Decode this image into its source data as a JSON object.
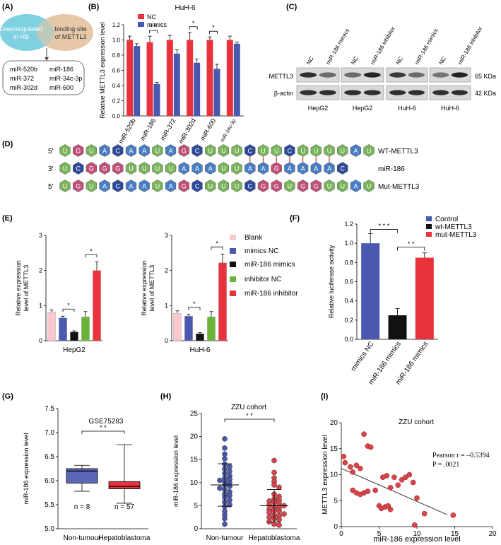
{
  "panel_labels": {
    "a": "(A)",
    "b": "(B)",
    "c": "(C)",
    "d": "(D)",
    "e": "(E)",
    "f": "(F)",
    "g": "(G)",
    "h": "(H)",
    "i": "(I)"
  },
  "sig": {
    "two": "* *",
    "one": "*",
    "three": "* * *"
  },
  "colors": {
    "red": "#e8333c",
    "blue": "#4a58b0",
    "pink": "#f8c8cc",
    "black": "#111111",
    "green": "#6ab43a",
    "cyan": "#7fd0e0",
    "tan": "#e6c8a8",
    "box": "#5a66b6",
    "scatter_red": "#d9454a",
    "scatter_blue": "#4b5aa8"
  },
  "panel_a": {
    "left_circle": "Downregulated in HB",
    "left_lines": [
      "Downregulated",
      "in HB"
    ],
    "right_lines": [
      "binding site",
      "of METTL3"
    ],
    "mirs": [
      "miR-520b",
      "miR-186",
      "miR-372",
      "miR-34c-3p",
      "miR-302d",
      "miR-600"
    ]
  },
  "chart_data": [
    {
      "id": "B",
      "type": "bar",
      "title": "HuH-6",
      "ylabel": "Relative METTL3 expression level",
      "categories": [
        "miR-520b",
        "miR-186",
        "miR-372",
        "miR-302d",
        "miR-600",
        "miR-34c-3p"
      ],
      "series": [
        {
          "name": "NC",
          "values": [
            1.0,
            0.97,
            1.0,
            1.0,
            1.0,
            1.0
          ],
          "errors": [
            0.05,
            0.08,
            0.06,
            0.1,
            0.04,
            0.05
          ]
        },
        {
          "name": "mimics",
          "values": [
            0.92,
            0.42,
            0.82,
            0.7,
            0.62,
            0.95
          ],
          "errors": [
            0.03,
            0.02,
            0.05,
            0.05,
            0.06,
            0.02
          ]
        }
      ],
      "ylim": [
        0,
        1.2
      ],
      "yticks": [
        0.0,
        0.2,
        0.4,
        0.6,
        0.8,
        1.0,
        1.2
      ],
      "ytick_labels": [
        "0.0",
        "0.2",
        "0.4",
        "0.6",
        "0.8",
        "1.0",
        "1.2"
      ],
      "significance": [
        {
          "category": "miR-186",
          "label": "* *"
        },
        {
          "category": "miR-302d",
          "label": "*"
        },
        {
          "category": "miR-600",
          "label": "*"
        }
      ]
    },
    {
      "id": "E-HepG2",
      "type": "bar",
      "title": "",
      "xlabel": "HepG2",
      "ylabel": "Relative expression level of METTL3",
      "categories": [
        "Blank",
        "mimics NC",
        "miR-186 mimics",
        "inhibitor NC",
        "miR-186 inhibitor"
      ],
      "values": [
        0.82,
        0.65,
        0.25,
        0.68,
        2.0
      ],
      "errors": [
        0.06,
        0.05,
        0.03,
        0.15,
        0.25
      ],
      "ylim": [
        0,
        3
      ],
      "yticks": [
        0,
        1,
        2,
        3
      ],
      "ytick_labels": [
        "0",
        "1",
        "2",
        "3"
      ],
      "significance": [
        {
          "from": 1,
          "to": 2,
          "label": "*"
        },
        {
          "from": 3,
          "to": 4,
          "label": "*"
        }
      ]
    },
    {
      "id": "E-HuH6",
      "type": "bar",
      "title": "",
      "xlabel": "HuH-6",
      "ylabel": "Relative expression level of METTL3",
      "categories": [
        "Blank",
        "mimics NC",
        "miR-186 mimics",
        "inhibitor NC",
        "miR-186 inhibitor"
      ],
      "values": [
        0.78,
        0.7,
        0.2,
        0.68,
        2.22
      ],
      "errors": [
        0.07,
        0.05,
        0.03,
        0.15,
        0.25
      ],
      "ylim": [
        0,
        3
      ],
      "yticks": [
        0,
        1,
        2,
        3
      ],
      "ytick_labels": [
        "0",
        "1",
        "2",
        "3"
      ],
      "significance": [
        {
          "from": 1,
          "to": 2,
          "label": "*"
        },
        {
          "from": 3,
          "to": 4,
          "label": "*"
        }
      ]
    },
    {
      "id": "F",
      "type": "bar",
      "ylabel": "Relative luciferase activity",
      "categories": [
        "mimics NC",
        "miR-186 mimics",
        "miR-186 mimics"
      ],
      "legend": [
        "Control",
        "wt-METTL3",
        "mut-METTL3"
      ],
      "values": [
        1.0,
        0.25,
        0.85
      ],
      "errors": [
        0.1,
        0.07,
        0.05
      ],
      "ylim": [
        0,
        1.2
      ],
      "yticks": [
        0.0,
        0.2,
        0.4,
        0.6,
        0.8,
        1.0,
        1.2
      ],
      "ytick_labels": [
        "0.0",
        "0.2",
        "0.4",
        "0.6",
        "0.8",
        "1.0",
        "1.2"
      ],
      "significance": [
        {
          "from": 0,
          "to": 1,
          "label": "* * *"
        },
        {
          "from": 1,
          "to": 2,
          "label": "* *"
        }
      ]
    },
    {
      "id": "G",
      "type": "box",
      "title": "GSE75283",
      "ylabel": "miR-186 expression level",
      "categories": [
        "Non-tumour",
        "Hepatoblastoma"
      ],
      "boxes": [
        {
          "min": 5.78,
          "q1": 5.95,
          "median": 6.2,
          "q3": 6.25,
          "max": 6.32
        },
        {
          "min": 5.53,
          "q1": 5.83,
          "median": 5.88,
          "q3": 5.98,
          "max": 6.75
        }
      ],
      "n_labels": [
        "n = 8",
        "n = 57"
      ],
      "ylim": [
        5.0,
        7.5
      ],
      "yticks": [
        5.0,
        5.5,
        6.0,
        6.5,
        7.0,
        7.5
      ],
      "ytick_labels": [
        "5.0",
        "5.5",
        "6.0",
        "6.5",
        "7.0",
        "7.5"
      ],
      "significance": "* *"
    },
    {
      "id": "H",
      "type": "scatter",
      "title": "ZZU cohort",
      "ylabel": "miR-186 expression level",
      "categories": [
        "Non-tumour",
        "Hepatoblastoma"
      ],
      "groups": [
        {
          "name": "Non-tumour",
          "mean": 9.5,
          "sd": 4.6,
          "values": [
            19.5,
            17.5,
            16.2,
            15.2,
            14.0,
            13.5,
            13.0,
            12.5,
            12.0,
            11.5,
            11.0,
            10.8,
            10.5,
            10.2,
            10.0,
            9.5,
            9.2,
            8.8,
            8.5,
            8.0,
            7.5,
            7.2,
            6.8,
            6.2,
            5.8,
            5.2,
            4.8,
            3.8,
            3.0,
            2.2,
            1.0
          ]
        },
        {
          "name": "Hepatoblastoma",
          "mean": 5.0,
          "sd": 3.5,
          "values": [
            14.8,
            12.2,
            11.0,
            10.2,
            9.5,
            9.0,
            7.5,
            7.0,
            6.5,
            6.2,
            6.0,
            5.8,
            5.5,
            5.2,
            5.0,
            4.8,
            4.5,
            4.2,
            4.0,
            3.8,
            3.5,
            3.2,
            3.0,
            2.8,
            2.5,
            2.2,
            2.0,
            1.5,
            1.0,
            0.8
          ]
        }
      ],
      "ylim": [
        0,
        25
      ],
      "yticks": [
        0,
        5,
        10,
        15,
        20,
        25
      ],
      "ytick_labels": [
        "0",
        "5",
        "10",
        "15",
        "20",
        "25"
      ],
      "significance": "* *"
    },
    {
      "id": "I",
      "type": "scatter",
      "title": "ZZU cohort",
      "xlabel": "miR-186 expression level",
      "ylabel": "METTL3 expression level",
      "points": [
        [
          0.3,
          13.5
        ],
        [
          0.5,
          12.3
        ],
        [
          1.2,
          11.5
        ],
        [
          1.5,
          10.5
        ],
        [
          2.0,
          11.8
        ],
        [
          2.5,
          11.2
        ],
        [
          3.0,
          17.8
        ],
        [
          3.5,
          15.5
        ],
        [
          3.9,
          15.3
        ],
        [
          1.5,
          7.0
        ],
        [
          2.0,
          6.5
        ],
        [
          2.5,
          6.2
        ],
        [
          3.0,
          6.5
        ],
        [
          3.5,
          6.8
        ],
        [
          4.5,
          7.0
        ],
        [
          5.5,
          9.5
        ],
        [
          6.0,
          9.8
        ],
        [
          6.5,
          7.5
        ],
        [
          7.0,
          9.5
        ],
        [
          7.5,
          8.0
        ],
        [
          8.0,
          9.0
        ],
        [
          8.5,
          9.5
        ],
        [
          9.0,
          10.0
        ],
        [
          9.5,
          8.5
        ],
        [
          10.0,
          5.5
        ],
        [
          11.0,
          2.5
        ],
        [
          5.0,
          4.0
        ],
        [
          5.3,
          3.5
        ],
        [
          5.8,
          3.8
        ],
        [
          6.2,
          4.0
        ],
        [
          6.5,
          3.3
        ],
        [
          9.7,
          0.3
        ],
        [
          14.8,
          2.2
        ]
      ],
      "fit": {
        "x": [
          0,
          14
        ],
        "y": [
          11.2,
          2.3
        ]
      },
      "stats": [
        "Pearson r = –0.5394",
        "P = .0021"
      ],
      "xlim": [
        0,
        20
      ],
      "ylim": [
        0,
        20
      ],
      "xticks": [
        0,
        5,
        10,
        15,
        20
      ],
      "xtick_labels": [
        "0",
        "5",
        "10",
        "15",
        "20"
      ],
      "yticks": [
        0,
        5,
        10,
        15,
        20
      ],
      "ytick_labels": [
        "0",
        "5",
        "10",
        "15",
        "20"
      ]
    }
  ],
  "panel_c": {
    "row_labels": [
      "METTL3",
      "β-actin"
    ],
    "size_labels": [
      "65 KDa",
      "42 KDa"
    ],
    "blots": [
      {
        "lanes": [
          "NC",
          "miR-186 mimics"
        ],
        "cell": "HepG2"
      },
      {
        "lanes": [
          "NC",
          "miR-186 inhibitor"
        ],
        "cell": "HepG2"
      },
      {
        "lanes": [
          "NC",
          "miR-186 mimics"
        ],
        "cell": "HuH-6"
      },
      {
        "lanes": [
          "NC",
          "miR-186 inhibitor"
        ],
        "cell": "HuH-6"
      }
    ]
  },
  "panel_d": {
    "rows": [
      {
        "prefix": "5'",
        "name": "WT-METTL3",
        "seq": "UGUACAAUAGCUUUCUUCUUUUAU"
      },
      {
        "prefix": "3'",
        "name": "miR-186",
        "seq": "UCGGGUUUUAAAUUAAGAAAAC"
      },
      {
        "prefix": "5'",
        "name": "Mut-METTL3",
        "seq": "UGUACAAUAGCUUUCGGUGGUUAU"
      }
    ],
    "pair_positions": [
      14,
      15,
      16,
      17,
      18,
      19,
      20
    ],
    "base_colors": {
      "U": "#7ab55c",
      "G": "#c0507a",
      "A": "#4a7ec4",
      "C": "#2f4a9a"
    }
  }
}
